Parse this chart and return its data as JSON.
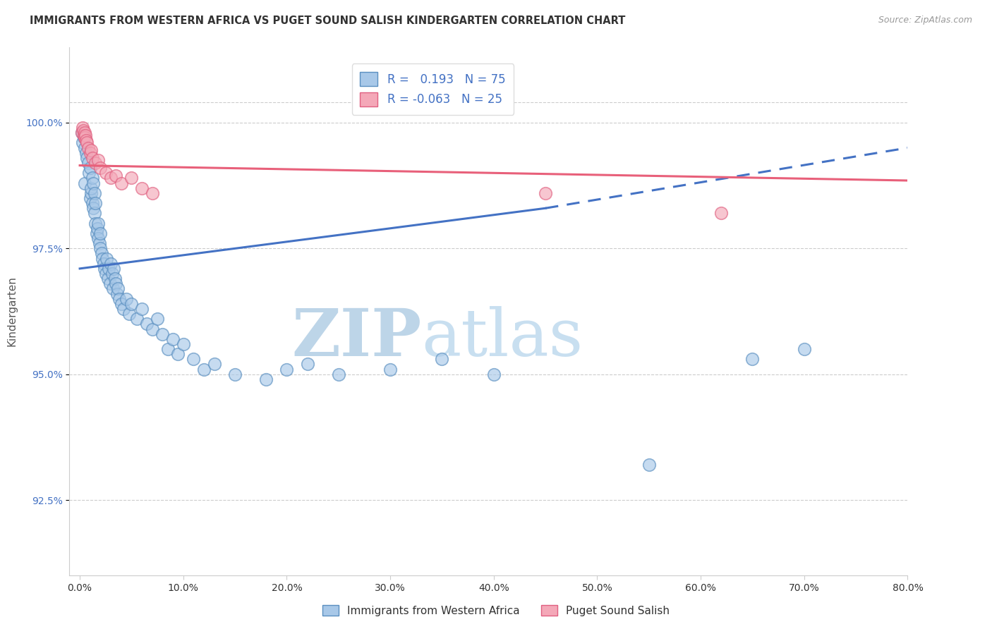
{
  "title": "IMMIGRANTS FROM WESTERN AFRICA VS PUGET SOUND SALISH KINDERGARTEN CORRELATION CHART",
  "source": "Source: ZipAtlas.com",
  "xlabel_blue": "Immigrants from Western Africa",
  "xlabel_pink": "Puget Sound Salish",
  "ylabel": "Kindergarten",
  "xlim": [
    -1.0,
    80.0
  ],
  "ylim": [
    91.0,
    101.5
  ],
  "yticks": [
    92.5,
    95.0,
    97.5,
    100.0
  ],
  "xticks": [
    0.0,
    10.0,
    20.0,
    30.0,
    40.0,
    50.0,
    60.0,
    70.0,
    80.0
  ],
  "R_blue": 0.193,
  "N_blue": 75,
  "R_pink": -0.063,
  "N_pink": 25,
  "blue_color": "#A8C8E8",
  "pink_color": "#F4A8B8",
  "blue_edge_color": "#5A8FC0",
  "pink_edge_color": "#E06080",
  "blue_line_color": "#4472C4",
  "pink_line_color": "#E8607A",
  "blue_scatter": [
    [
      0.2,
      99.8
    ],
    [
      0.3,
      99.6
    ],
    [
      0.4,
      99.7
    ],
    [
      0.5,
      99.5
    ],
    [
      0.5,
      98.8
    ],
    [
      0.6,
      99.4
    ],
    [
      0.7,
      99.3
    ],
    [
      0.8,
      99.2
    ],
    [
      0.9,
      99.0
    ],
    [
      1.0,
      99.1
    ],
    [
      1.0,
      98.5
    ],
    [
      1.1,
      98.6
    ],
    [
      1.1,
      98.7
    ],
    [
      1.2,
      98.4
    ],
    [
      1.2,
      98.9
    ],
    [
      1.3,
      98.3
    ],
    [
      1.3,
      98.8
    ],
    [
      1.4,
      98.2
    ],
    [
      1.4,
      98.6
    ],
    [
      1.5,
      98.0
    ],
    [
      1.5,
      98.4
    ],
    [
      1.6,
      97.8
    ],
    [
      1.7,
      97.9
    ],
    [
      1.8,
      97.7
    ],
    [
      1.8,
      98.0
    ],
    [
      1.9,
      97.6
    ],
    [
      2.0,
      97.5
    ],
    [
      2.0,
      97.8
    ],
    [
      2.1,
      97.4
    ],
    [
      2.2,
      97.3
    ],
    [
      2.3,
      97.2
    ],
    [
      2.4,
      97.1
    ],
    [
      2.5,
      97.0
    ],
    [
      2.6,
      97.3
    ],
    [
      2.7,
      96.9
    ],
    [
      2.8,
      97.1
    ],
    [
      2.9,
      96.8
    ],
    [
      3.0,
      97.2
    ],
    [
      3.1,
      97.0
    ],
    [
      3.2,
      96.7
    ],
    [
      3.3,
      97.1
    ],
    [
      3.4,
      96.9
    ],
    [
      3.5,
      96.8
    ],
    [
      3.6,
      96.6
    ],
    [
      3.7,
      96.7
    ],
    [
      3.8,
      96.5
    ],
    [
      4.0,
      96.4
    ],
    [
      4.2,
      96.3
    ],
    [
      4.5,
      96.5
    ],
    [
      4.8,
      96.2
    ],
    [
      5.0,
      96.4
    ],
    [
      5.5,
      96.1
    ],
    [
      6.0,
      96.3
    ],
    [
      6.5,
      96.0
    ],
    [
      7.0,
      95.9
    ],
    [
      7.5,
      96.1
    ],
    [
      8.0,
      95.8
    ],
    [
      8.5,
      95.5
    ],
    [
      9.0,
      95.7
    ],
    [
      9.5,
      95.4
    ],
    [
      10.0,
      95.6
    ],
    [
      11.0,
      95.3
    ],
    [
      12.0,
      95.1
    ],
    [
      13.0,
      95.2
    ],
    [
      15.0,
      95.0
    ],
    [
      18.0,
      94.9
    ],
    [
      20.0,
      95.1
    ],
    [
      22.0,
      95.2
    ],
    [
      25.0,
      95.0
    ],
    [
      30.0,
      95.1
    ],
    [
      35.0,
      95.3
    ],
    [
      40.0,
      95.0
    ],
    [
      55.0,
      93.2
    ],
    [
      65.0,
      95.3
    ],
    [
      70.0,
      95.5
    ]
  ],
  "pink_scatter": [
    [
      0.2,
      99.8
    ],
    [
      0.3,
      99.9
    ],
    [
      0.35,
      99.85
    ],
    [
      0.4,
      99.75
    ],
    [
      0.45,
      99.8
    ],
    [
      0.5,
      99.7
    ],
    [
      0.55,
      99.75
    ],
    [
      0.6,
      99.65
    ],
    [
      0.7,
      99.6
    ],
    [
      0.8,
      99.5
    ],
    [
      1.0,
      99.4
    ],
    [
      1.1,
      99.45
    ],
    [
      1.2,
      99.3
    ],
    [
      1.5,
      99.2
    ],
    [
      1.8,
      99.25
    ],
    [
      2.0,
      99.1
    ],
    [
      2.5,
      99.0
    ],
    [
      3.0,
      98.9
    ],
    [
      3.5,
      98.95
    ],
    [
      4.0,
      98.8
    ],
    [
      5.0,
      98.9
    ],
    [
      6.0,
      98.7
    ],
    [
      7.0,
      98.6
    ],
    [
      45.0,
      98.6
    ],
    [
      62.0,
      98.2
    ]
  ],
  "blue_line_x": [
    0,
    45,
    80
  ],
  "blue_line_y": [
    97.1,
    98.3,
    99.5
  ],
  "blue_dash_start_idx": 1,
  "pink_line_x": [
    0,
    80
  ],
  "pink_line_y": [
    99.15,
    98.85
  ],
  "watermark_zip": "ZIP",
  "watermark_atlas": "atlas",
  "watermark_color": "#C8DFF0"
}
